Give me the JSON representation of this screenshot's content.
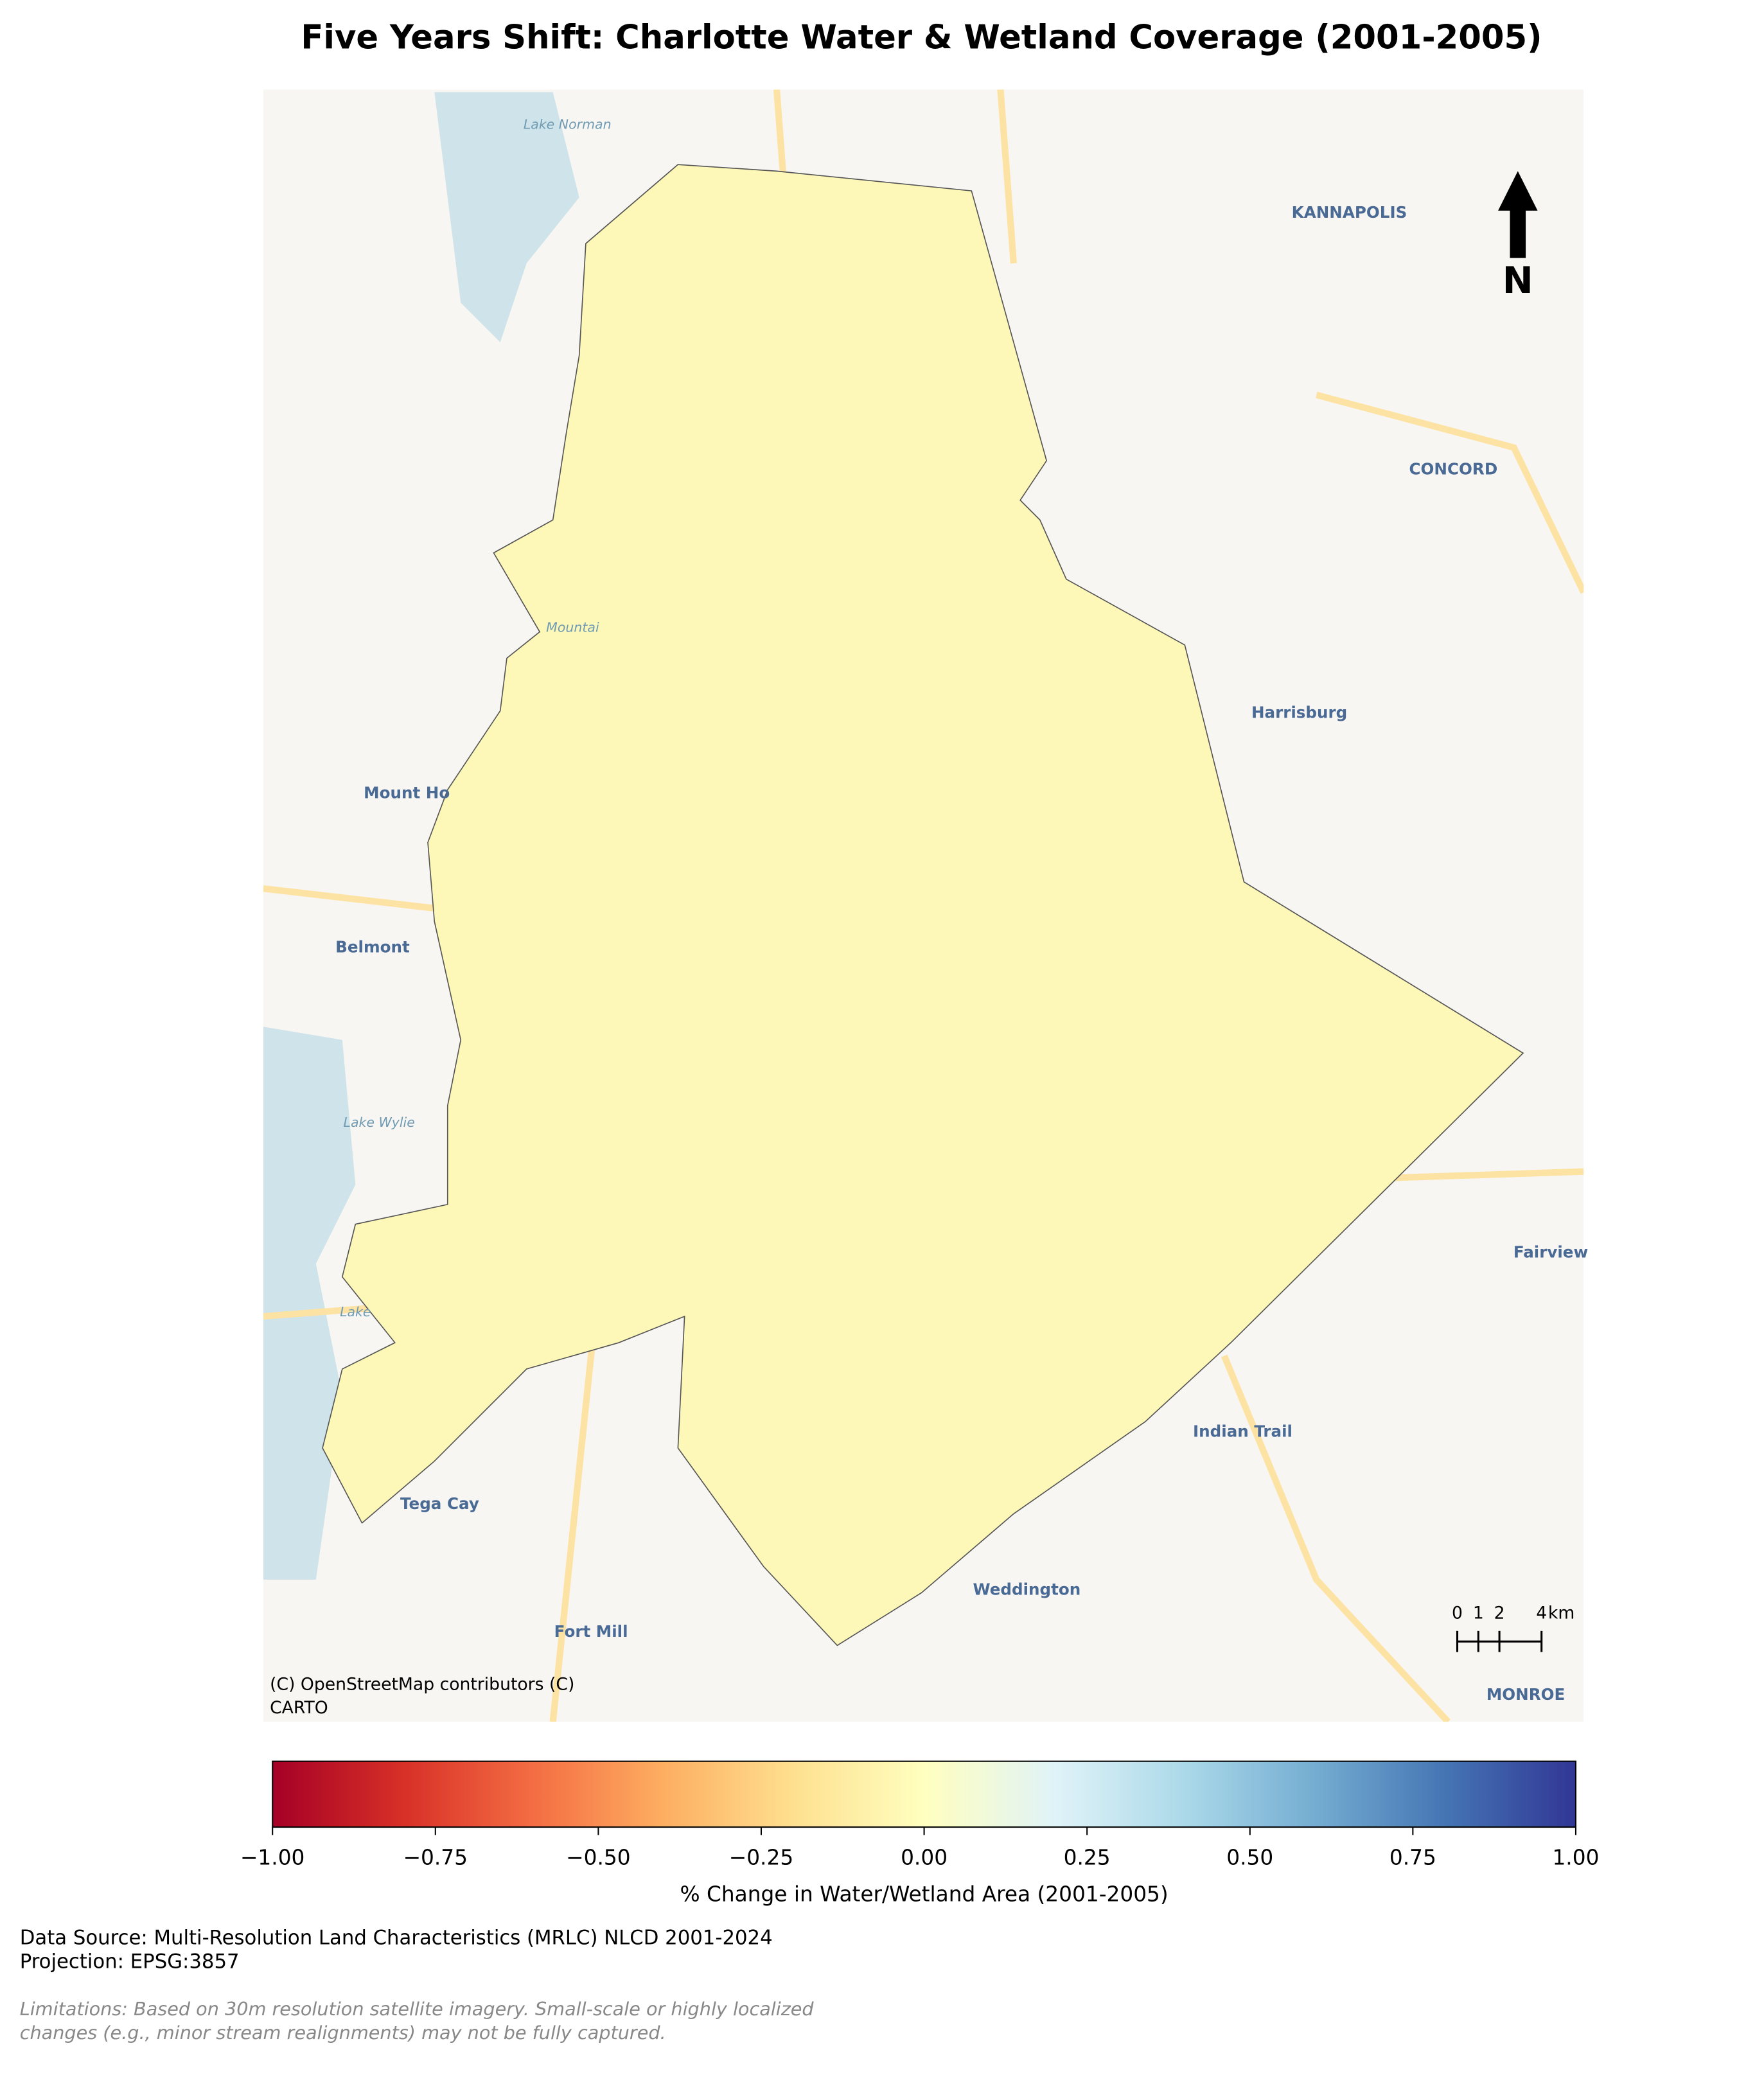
{
  "title": "Five Years Shift: Charlotte Water & Wetland Coverage (2001-2005)",
  "map": {
    "places": [
      {
        "name": "Lake Norman",
        "kind": "lake"
      },
      {
        "name": "KANNAPOLIS",
        "kind": "city"
      },
      {
        "name": "CONCORD",
        "kind": "city"
      },
      {
        "name": "Mountai",
        "kind": "lake"
      },
      {
        "name": "Harrisburg",
        "kind": "town"
      },
      {
        "name": "Mount Ho",
        "kind": "town"
      },
      {
        "name": "Belmont",
        "kind": "town"
      },
      {
        "name": "Lake Wylie",
        "kind": "lake"
      },
      {
        "name": "Fairview",
        "kind": "town"
      },
      {
        "name": "Lake",
        "kind": "lake"
      },
      {
        "name": "Indian Trail",
        "kind": "town"
      },
      {
        "name": "Tega Cay",
        "kind": "town"
      },
      {
        "name": "Weddington",
        "kind": "town"
      },
      {
        "name": "Fort Mill",
        "kind": "town"
      },
      {
        "name": "MONROE",
        "kind": "city"
      }
    ],
    "attribution": [
      "(C) OpenStreetMap contributors (C)",
      "CARTO"
    ],
    "north_arrow": "N",
    "scale_bar": {
      "ticks": [
        0,
        1,
        2,
        4
      ],
      "unit": "km"
    }
  },
  "colorbar": {
    "label": "% Change in Water/Wetland Area (2001-2005)",
    "lim": [
      -1,
      1
    ],
    "ticks": [
      {
        "value": -1,
        "label": "−1.00"
      },
      {
        "value": -0.75,
        "label": "−0.75"
      },
      {
        "value": -0.5,
        "label": "−0.50"
      },
      {
        "value": -0.25,
        "label": "−0.25"
      },
      {
        "value": 0,
        "label": "0.00"
      },
      {
        "value": 0.25,
        "label": "0.25"
      },
      {
        "value": 0.5,
        "label": "0.50"
      },
      {
        "value": 0.75,
        "label": "0.75"
      },
      {
        "value": 1,
        "label": "1.00"
      }
    ]
  },
  "notes": {
    "source": [
      "Data Source: Multi-Resolution Land Characteristics (MRLC) NLCD 2001-2024",
      "Projection: EPSG:3857"
    ],
    "limitations": [
      "Limitations: Based on 30m resolution satellite imagery. Small-scale or highly localized",
      "changes (e.g., minor stream realignments) may not be fully captured."
    ]
  }
}
